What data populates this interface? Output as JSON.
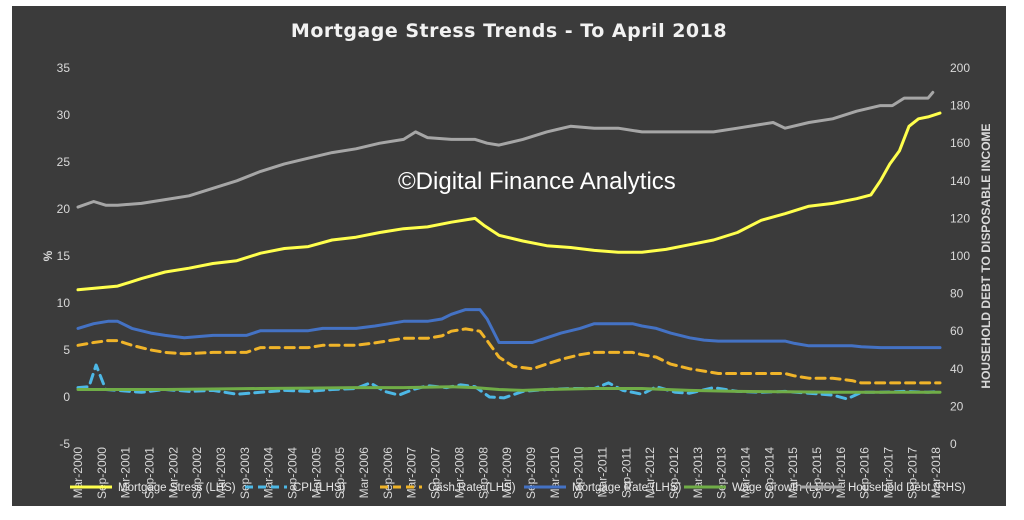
{
  "chart_data": {
    "type": "line",
    "title": "Mortgage Stress Trends - To April 2018",
    "watermark": "©Digital Finance Analytics",
    "ylabel_left": "%",
    "ylabel_right": "HOUSEHOLD DEBT TO DISPOSABLE INCOME",
    "ylim_left": [
      -5,
      35
    ],
    "yticks_left": [
      -5,
      0,
      5,
      10,
      15,
      20,
      25,
      30,
      35
    ],
    "ylim_right": [
      0,
      200
    ],
    "yticks_right": [
      0,
      20,
      40,
      60,
      80,
      100,
      120,
      140,
      160,
      180,
      200
    ],
    "x_range": [
      2000.17,
      2018.25
    ],
    "x_tick_labels": [
      "Mar-2000",
      "Sep-2000",
      "Mar-2001",
      "Sep-2001",
      "Mar-2002",
      "Sep-2002",
      "Mar-2003",
      "Sep-2003",
      "Mar-2004",
      "Sep-2004",
      "Mar-2005",
      "Sep-2005",
      "Mar-2006",
      "Sep-2006",
      "Mar-2007",
      "Sep-2007",
      "Mar-2008",
      "Sep-2008",
      "Mar-2009",
      "Sep-2009",
      "Mar-2010",
      "Sep-2010",
      "Mar-2011",
      "Sep-2011",
      "Mar-2012",
      "Sep-2012",
      "Mar-2013",
      "Sep-2013",
      "Mar-2014",
      "Sep-2014",
      "Mar-2015",
      "Sep-2015",
      "Mar-2016",
      "Sep-2016",
      "Mar-2017",
      "Sep-2017",
      "Mar-2018"
    ],
    "grid": false,
    "legend_position": "bottom",
    "series": [
      {
        "name": "Mortgage Stress (LHS)",
        "axis": "left",
        "color": "#ffff4d",
        "dash": "solid",
        "x": [
          2000.17,
          2001.0,
          2001.5,
          2002.0,
          2002.5,
          2003.0,
          2003.5,
          2004.0,
          2004.5,
          2005.0,
          2005.5,
          2006.0,
          2006.5,
          2007.0,
          2007.5,
          2008.0,
          2008.5,
          2008.7,
          2009.0,
          2009.5,
          2010.0,
          2010.5,
          2011.0,
          2011.5,
          2012.0,
          2012.5,
          2013.0,
          2013.5,
          2014.0,
          2014.5,
          2015.0,
          2015.5,
          2016.0,
          2016.5,
          2016.8,
          2017.0,
          2017.2,
          2017.4,
          2017.6,
          2017.8,
          2018.0,
          2018.25
        ],
        "y": [
          11.4,
          11.8,
          12.6,
          13.3,
          13.7,
          14.2,
          14.5,
          15.3,
          15.8,
          16.0,
          16.7,
          17.0,
          17.5,
          17.9,
          18.1,
          18.6,
          19.0,
          18.2,
          17.2,
          16.6,
          16.1,
          15.9,
          15.6,
          15.4,
          15.4,
          15.7,
          16.2,
          16.7,
          17.5,
          18.8,
          19.5,
          20.3,
          20.6,
          21.1,
          21.5,
          23.0,
          24.8,
          26.2,
          28.8,
          29.6,
          29.8,
          30.2
        ]
      },
      {
        "name": "CPI (LHS)",
        "axis": "left",
        "color": "#4db8e6",
        "dash": "dashed",
        "x": [
          2000.17,
          2000.4,
          2000.55,
          2000.75,
          2001.0,
          2001.5,
          2002.0,
          2002.5,
          2003.0,
          2003.5,
          2004.0,
          2004.5,
          2005.0,
          2005.5,
          2006.0,
          2006.3,
          2006.6,
          2006.9,
          2007.2,
          2007.5,
          2007.9,
          2008.2,
          2008.5,
          2008.8,
          2009.1,
          2009.5,
          2010.0,
          2010.5,
          2011.0,
          2011.3,
          2011.6,
          2012.0,
          2012.3,
          2012.7,
          2013.0,
          2013.5,
          2014.0,
          2014.5,
          2015.0,
          2015.5,
          2016.0,
          2016.3,
          2016.6,
          2017.0,
          2017.5,
          2018.0,
          2018.25
        ],
        "y": [
          1.0,
          1.1,
          3.4,
          0.8,
          0.7,
          0.5,
          0.8,
          0.6,
          0.7,
          0.3,
          0.5,
          0.7,
          0.6,
          0.8,
          0.9,
          1.5,
          0.6,
          0.2,
          0.8,
          1.2,
          1.0,
          1.3,
          1.1,
          0.0,
          -0.1,
          0.6,
          0.8,
          0.9,
          0.9,
          1.5,
          0.7,
          0.3,
          1.1,
          0.5,
          0.4,
          1.0,
          0.6,
          0.5,
          0.6,
          0.4,
          0.2,
          -0.2,
          0.5,
          0.5,
          0.6,
          0.5,
          0.6
        ]
      },
      {
        "name": "Cash Rate (LHS)",
        "axis": "left",
        "color": "#f0b429",
        "dash": "dashed",
        "x": [
          2000.17,
          2000.5,
          2000.8,
          2001.0,
          2001.3,
          2001.7,
          2002.0,
          2002.4,
          2003.0,
          2003.7,
          2004.0,
          2005.0,
          2005.3,
          2006.0,
          2006.4,
          2006.7,
          2007.0,
          2007.5,
          2007.8,
          2008.0,
          2008.3,
          2008.6,
          2008.75,
          2009.0,
          2009.3,
          2009.7,
          2010.0,
          2010.3,
          2010.7,
          2011.0,
          2011.5,
          2011.8,
          2012.0,
          2012.3,
          2012.6,
          2013.0,
          2013.3,
          2013.6,
          2014.0,
          2015.0,
          2015.2,
          2015.5,
          2016.0,
          2016.4,
          2016.6,
          2017.0,
          2017.5,
          2018.0,
          2018.25
        ],
        "y": [
          5.5,
          5.8,
          6.0,
          6.0,
          5.5,
          5.0,
          4.75,
          4.6,
          4.75,
          4.75,
          5.25,
          5.25,
          5.5,
          5.5,
          5.75,
          6.0,
          6.25,
          6.25,
          6.5,
          7.0,
          7.25,
          7.0,
          6.0,
          4.25,
          3.25,
          3.0,
          3.5,
          4.0,
          4.5,
          4.75,
          4.75,
          4.75,
          4.5,
          4.25,
          3.5,
          3.0,
          2.75,
          2.5,
          2.5,
          2.5,
          2.25,
          2.0,
          2.0,
          1.75,
          1.5,
          1.5,
          1.5,
          1.5,
          1.5
        ]
      },
      {
        "name": "Mortgage Rate (LHS)",
        "axis": "left",
        "color": "#4472c4",
        "dash": "solid",
        "x": [
          2000.17,
          2000.5,
          2000.8,
          2001.0,
          2001.3,
          2001.7,
          2002.0,
          2002.4,
          2003.0,
          2003.7,
          2004.0,
          2005.0,
          2005.3,
          2006.0,
          2006.4,
          2006.7,
          2007.0,
          2007.5,
          2007.8,
          2008.0,
          2008.3,
          2008.6,
          2008.75,
          2009.0,
          2009.3,
          2009.7,
          2010.0,
          2010.3,
          2010.7,
          2011.0,
          2011.5,
          2011.8,
          2012.0,
          2012.3,
          2012.6,
          2013.0,
          2013.3,
          2013.6,
          2014.0,
          2015.0,
          2015.2,
          2015.5,
          2016.0,
          2016.4,
          2016.6,
          2017.0,
          2017.5,
          2018.0,
          2018.25
        ],
        "y": [
          7.3,
          7.8,
          8.05,
          8.05,
          7.3,
          6.8,
          6.55,
          6.3,
          6.55,
          6.55,
          7.05,
          7.05,
          7.3,
          7.3,
          7.55,
          7.8,
          8.05,
          8.05,
          8.3,
          8.8,
          9.3,
          9.3,
          8.3,
          5.8,
          5.8,
          5.8,
          6.3,
          6.8,
          7.3,
          7.8,
          7.8,
          7.8,
          7.55,
          7.3,
          6.8,
          6.3,
          6.05,
          5.95,
          5.95,
          5.95,
          5.7,
          5.45,
          5.45,
          5.45,
          5.35,
          5.25,
          5.25,
          5.25,
          5.25
        ]
      },
      {
        "name": "Wage Growth (LHS)",
        "axis": "left",
        "color": "#70ad47",
        "dash": "solid",
        "x": [
          2000.17,
          2001.0,
          2002.0,
          2003.0,
          2004.0,
          2005.0,
          2006.0,
          2007.0,
          2008.0,
          2008.5,
          2009.0,
          2009.5,
          2010.0,
          2011.0,
          2012.0,
          2012.5,
          2013.0,
          2013.5,
          2014.0,
          2015.0,
          2016.0,
          2017.0,
          2018.0,
          2018.25
        ],
        "y": [
          0.8,
          0.8,
          0.8,
          0.85,
          0.9,
          0.95,
          1.0,
          1.0,
          1.1,
          1.0,
          0.8,
          0.7,
          0.8,
          0.9,
          0.9,
          0.8,
          0.7,
          0.65,
          0.6,
          0.55,
          0.5,
          0.5,
          0.5,
          0.5
        ]
      },
      {
        "name": "Household Debt (RHS)",
        "axis": "right",
        "color": "#a6a6a6",
        "dash": "solid",
        "x": [
          2000.17,
          2000.5,
          2000.75,
          2001.0,
          2001.5,
          2002.0,
          2002.5,
          2003.0,
          2003.5,
          2004.0,
          2004.5,
          2005.0,
          2005.5,
          2006.0,
          2006.5,
          2007.0,
          2007.25,
          2007.5,
          2008.0,
          2008.5,
          2008.75,
          2009.0,
          2009.5,
          2010.0,
          2010.5,
          2011.0,
          2011.5,
          2012.0,
          2012.5,
          2013.0,
          2013.5,
          2014.0,
          2014.5,
          2014.75,
          2015.0,
          2015.5,
          2016.0,
          2016.5,
          2017.0,
          2017.25,
          2017.5,
          2017.75,
          2018.0,
          2018.1
        ],
        "y": [
          126,
          129,
          127,
          127,
          128,
          130,
          132,
          136,
          140,
          145,
          149,
          152,
          155,
          157,
          160,
          162,
          166,
          163,
          162,
          162,
          160,
          159,
          162,
          166,
          169,
          168,
          168,
          166,
          166,
          166,
          166,
          168,
          170,
          171,
          168,
          171,
          173,
          177,
          180,
          180,
          184,
          184,
          184,
          187
        ]
      }
    ]
  }
}
